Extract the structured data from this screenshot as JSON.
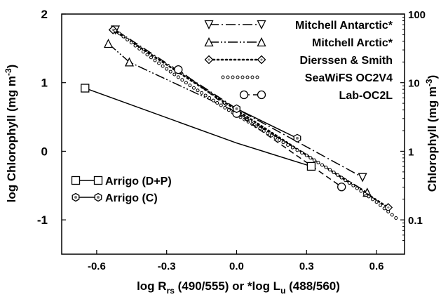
{
  "chart_data": {
    "type": "line",
    "xlabel": "log R",
    "xlabel_sub": "rs",
    "xlabel_rest": " (490/555) or *log L",
    "xlabel_sub2": "u",
    "xlabel_tail": " (488/560)",
    "ylabel_left": "log Chlorophyll (mg m",
    "ylabel_right": "Chlorophyll (mg m",
    "ylabel_sup": "-3",
    "ylabel_close": ")",
    "xlim": [
      -0.75,
      0.72
    ],
    "ylim": [
      -1.5,
      2
    ],
    "x_ticks": [
      "-0.6",
      "-0.3",
      "0.0",
      "0.3",
      "0.6"
    ],
    "x_tick_values": [
      -0.6,
      -0.3,
      0.0,
      0.3,
      0.6
    ],
    "y_ticks_left": [
      "-1",
      "0",
      "1",
      "2"
    ],
    "y_tick_values_left": [
      -1,
      0,
      1,
      2
    ],
    "y_ticks_right": [
      "0.1",
      "1",
      "10",
      "100"
    ],
    "y_tick_values_right": [
      -1,
      0,
      1,
      2
    ],
    "y_right_scale": "log",
    "grid": false,
    "legend_top_right": "top-right",
    "legend_bottom_left": "bottom-left",
    "series": [
      {
        "name": "Mitchell Antarctic*",
        "style": "dashdot",
        "marker": "triangle-down",
        "legend": "tr",
        "x": [
          -0.52,
          0.0,
          0.54
        ],
        "y": [
          1.77,
          0.62,
          -0.38
        ],
        "marker_x": [
          -0.52,
          0.54
        ]
      },
      {
        "name": "Mitchell Arctic*",
        "style": "dashdotdot",
        "marker": "triangle-up",
        "legend": "tr",
        "x": [
          -0.55,
          -0.46,
          0.0,
          0.56
        ],
        "y": [
          1.57,
          1.3,
          0.57,
          -0.6
        ],
        "marker_x": [
          -0.55,
          -0.46,
          0.56
        ]
      },
      {
        "name": "Dierssen & Smith",
        "style": "dotted-thick",
        "marker": "diamond",
        "legend": "tr",
        "x": [
          -0.53,
          0.0,
          0.65
        ],
        "y": [
          1.77,
          0.6,
          -0.82
        ],
        "marker_x": [
          -0.53,
          0.65
        ]
      },
      {
        "name": "SeaWiFS OC2V4",
        "style": "open-circles-small",
        "marker": "none",
        "legend": "tr",
        "x": [
          -0.52,
          -0.4,
          -0.3,
          -0.2,
          -0.1,
          0.0,
          0.1,
          0.2,
          0.3,
          0.4,
          0.5,
          0.6,
          0.7
        ],
        "y": [
          1.76,
          1.45,
          1.2,
          0.96,
          0.74,
          0.53,
          0.33,
          0.13,
          -0.06,
          -0.27,
          -0.5,
          -0.74,
          -1.02
        ]
      },
      {
        "name": "Lab-OC2L",
        "style": "dashed",
        "marker": "circle",
        "legend": "tr",
        "x": [
          -0.25,
          0.0,
          0.45
        ],
        "y": [
          1.19,
          0.55,
          -0.52
        ],
        "marker_x": [
          -0.25,
          0.0,
          0.45
        ]
      },
      {
        "name": "Arrigo (D+P)",
        "style": "solid",
        "marker": "square",
        "legend": "bl",
        "x": [
          -0.65,
          0.0,
          0.32
        ],
        "y": [
          0.92,
          0.12,
          -0.22
        ],
        "marker_x": [
          -0.65,
          0.32
        ]
      },
      {
        "name": "Arrigo (C)",
        "style": "solid",
        "marker": "hexagon",
        "legend": "bl",
        "x": [
          0.0,
          0.26
        ],
        "y": [
          0.62,
          0.19
        ],
        "marker_x": [
          0.0,
          0.26
        ]
      }
    ]
  }
}
